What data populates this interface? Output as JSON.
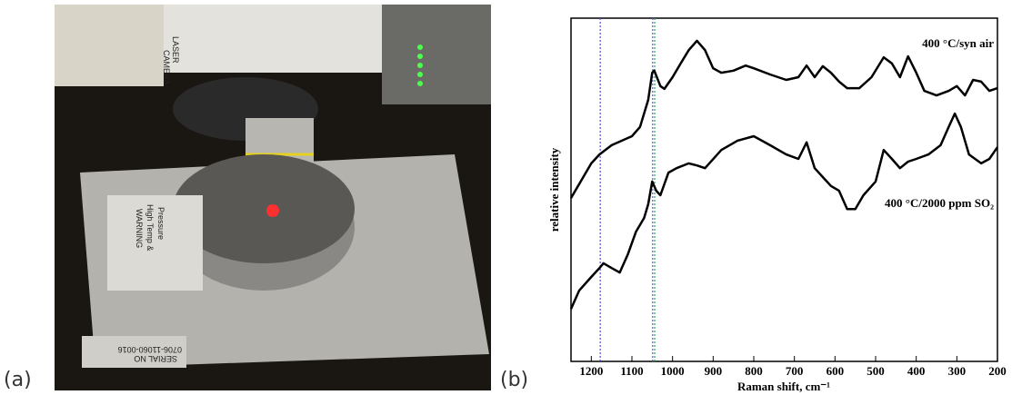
{
  "panels": {
    "a": "(a)",
    "b": "(b)"
  },
  "photo": {
    "labels": [
      "LASER",
      "CAMERA",
      "WARNING",
      "High Temp &",
      "Pressure",
      "SERIAL NO",
      "0706-11060-0016"
    ]
  },
  "chart_data": {
    "type": "line",
    "x_label": "Raman shift, cm⁻¹",
    "y_label": "relative intensity",
    "xlim": [
      1250,
      200
    ],
    "ylim": [
      0,
      100
    ],
    "xticks": [
      1200,
      1100,
      1000,
      900,
      800,
      700,
      600,
      500,
      400,
      300,
      200
    ],
    "vlines": [
      {
        "x": 1178,
        "color": "#5050d0"
      },
      {
        "x": 1049,
        "color": "#3a6fe0"
      },
      {
        "x": 1044,
        "color": "#2ea05a"
      }
    ],
    "series": [
      {
        "name": "400 °C/syn air",
        "color": "#000000",
        "x": [
          1250,
          1200,
          1180,
          1150,
          1100,
          1080,
          1060,
          1050,
          1045,
          1030,
          1020,
          1000,
          980,
          960,
          940,
          920,
          900,
          880,
          850,
          820,
          800,
          760,
          720,
          690,
          670,
          650,
          630,
          610,
          590,
          570,
          540,
          510,
          480,
          460,
          440,
          420,
          400,
          380,
          350,
          320,
          300,
          280,
          260,
          240,
          220,
          200
        ],
        "values": [
          47.6,
          57.7,
          60.3,
          63.0,
          65.6,
          68.3,
          76.2,
          84.1,
          84.7,
          80.2,
          79.4,
          82.8,
          86.8,
          90.7,
          93.4,
          90.7,
          85.4,
          84.1,
          84.7,
          86.2,
          85.4,
          83.6,
          82.0,
          82.8,
          86.2,
          82.8,
          86.0,
          84.1,
          81.5,
          79.6,
          79.6,
          82.8,
          88.6,
          86.8,
          82.8,
          88.9,
          84.1,
          78.8,
          77.5,
          78.8,
          80.2,
          77.5,
          82.0,
          81.5,
          78.8,
          79.6
        ]
      },
      {
        "name": "400 °C/2000 ppm SO₂",
        "color": "#000000",
        "x": [
          1250,
          1230,
          1200,
          1180,
          1170,
          1150,
          1130,
          1110,
          1090,
          1070,
          1060,
          1050,
          1040,
          1030,
          1010,
          990,
          960,
          940,
          920,
          880,
          840,
          800,
          760,
          720,
          690,
          670,
          650,
          630,
          610,
          590,
          570,
          550,
          530,
          500,
          480,
          460,
          440,
          420,
          400,
          370,
          340,
          320,
          305,
          290,
          270,
          240,
          220,
          200
        ],
        "values": [
          15.3,
          20.6,
          24.6,
          27.2,
          28.6,
          27.2,
          25.9,
          31.2,
          37.8,
          41.8,
          45.8,
          52.4,
          49.7,
          48.4,
          55.0,
          56.3,
          57.7,
          57.1,
          56.3,
          61.6,
          64.3,
          65.6,
          63.0,
          60.3,
          59.0,
          63.8,
          56.3,
          53.7,
          51.1,
          49.7,
          44.4,
          44.4,
          48.4,
          52.4,
          61.6,
          59.0,
          56.3,
          58.2,
          59.0,
          60.3,
          63.0,
          68.3,
          72.2,
          68.3,
          60.3,
          57.7,
          59.0,
          62.4
        ]
      }
    ]
  }
}
